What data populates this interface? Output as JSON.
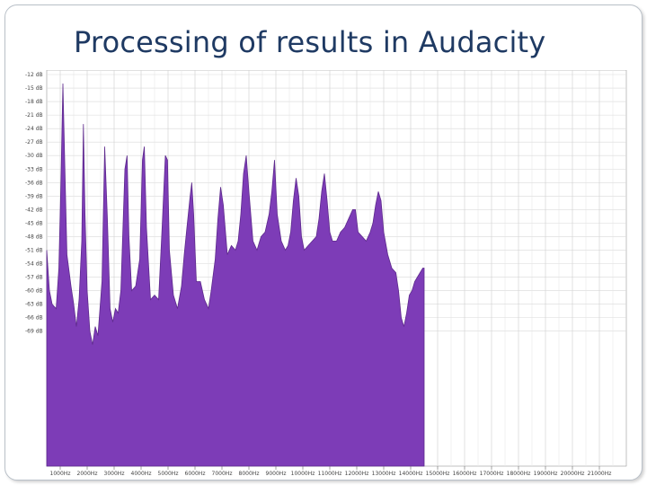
{
  "slide": {
    "title": "Processing of results in Audacity"
  },
  "chart_data": {
    "type": "area",
    "title": "",
    "xlabel": "",
    "ylabel": "",
    "series_color": "#7d3cb7",
    "grid": true,
    "x_range": [
      500,
      22000
    ],
    "y_range": [
      -99,
      -11
    ],
    "y_ticks": [
      {
        "label": "-12 dB",
        "value": -12
      },
      {
        "label": "-15 dB",
        "value": -15
      },
      {
        "label": "-18 dB",
        "value": -18
      },
      {
        "label": "-21 dB",
        "value": -21
      },
      {
        "label": "-24 dB",
        "value": -24
      },
      {
        "label": "-27 dB",
        "value": -27
      },
      {
        "label": "-30 dB",
        "value": -30
      },
      {
        "label": "-33 dB",
        "value": -33
      },
      {
        "label": "-36 dB",
        "value": -36
      },
      {
        "label": "-39 dB",
        "value": -39
      },
      {
        "label": "-42 dB",
        "value": -42
      },
      {
        "label": "-45 dB",
        "value": -45
      },
      {
        "label": "-48 dB",
        "value": -48
      },
      {
        "label": "-51 dB",
        "value": -51
      },
      {
        "label": "-54 dB",
        "value": -54
      },
      {
        "label": "-57 dB",
        "value": -57
      },
      {
        "label": "-60 dB",
        "value": -60
      },
      {
        "label": "-63 dB",
        "value": -63
      },
      {
        "label": "-66 dB",
        "value": -66
      },
      {
        "label": "-69 dB",
        "value": -69
      }
    ],
    "x_ticks": [
      {
        "label": "1000Hz",
        "value": 1000
      },
      {
        "label": "2000Hz",
        "value": 2000
      },
      {
        "label": "3000Hz",
        "value": 3000
      },
      {
        "label": "4000Hz",
        "value": 4000
      },
      {
        "label": "5000Hz",
        "value": 5000
      },
      {
        "label": "6000Hz",
        "value": 6000
      },
      {
        "label": "7000Hz",
        "value": 7000
      },
      {
        "label": "8000Hz",
        "value": 8000
      },
      {
        "label": "9000Hz",
        "value": 9000
      },
      {
        "label": "10000Hz",
        "value": 10000
      },
      {
        "label": "11000Hz",
        "value": 11000
      },
      {
        "label": "12000Hz",
        "value": 12000
      },
      {
        "label": "13000Hz",
        "value": 13000
      },
      {
        "label": "14000Hz",
        "value": 14000
      },
      {
        "label": "15000Hz",
        "value": 15000
      },
      {
        "label": "16000Hz",
        "value": 16000
      },
      {
        "label": "17000Hz",
        "value": 17000
      },
      {
        "label": "18000Hz",
        "value": 18000
      },
      {
        "label": "19000Hz",
        "value": 19000
      },
      {
        "label": "20000Hz",
        "value": 20000
      },
      {
        "label": "21000Hz",
        "value": 21000
      }
    ],
    "series": [
      {
        "points": [
          [
            500,
            -51
          ],
          [
            600,
            -60
          ],
          [
            700,
            -63
          ],
          [
            850,
            -64
          ],
          [
            950,
            -55
          ],
          [
            1030,
            -35
          ],
          [
            1100,
            -14
          ],
          [
            1170,
            -32
          ],
          [
            1250,
            -52
          ],
          [
            1400,
            -59
          ],
          [
            1500,
            -63
          ],
          [
            1600,
            -68
          ],
          [
            1700,
            -62
          ],
          [
            1800,
            -49
          ],
          [
            1860,
            -23
          ],
          [
            1920,
            -43
          ],
          [
            2000,
            -60
          ],
          [
            2100,
            -69
          ],
          [
            2200,
            -72
          ],
          [
            2300,
            -68
          ],
          [
            2400,
            -70
          ],
          [
            2550,
            -58
          ],
          [
            2650,
            -28
          ],
          [
            2750,
            -44
          ],
          [
            2850,
            -64
          ],
          [
            2950,
            -67
          ],
          [
            3050,
            -64
          ],
          [
            3150,
            -65
          ],
          [
            3250,
            -60
          ],
          [
            3400,
            -33
          ],
          [
            3480,
            -30
          ],
          [
            3550,
            -48
          ],
          [
            3650,
            -60
          ],
          [
            3800,
            -59
          ],
          [
            3950,
            -53
          ],
          [
            4050,
            -31
          ],
          [
            4120,
            -28
          ],
          [
            4200,
            -46
          ],
          [
            4350,
            -62
          ],
          [
            4500,
            -61
          ],
          [
            4650,
            -62
          ],
          [
            4780,
            -46
          ],
          [
            4900,
            -30
          ],
          [
            4980,
            -31
          ],
          [
            5050,
            -51
          ],
          [
            5200,
            -61
          ],
          [
            5350,
            -64
          ],
          [
            5500,
            -59
          ],
          [
            5600,
            -52
          ],
          [
            5700,
            -46
          ],
          [
            5820,
            -39
          ],
          [
            5880,
            -36
          ],
          [
            5950,
            -43
          ],
          [
            6050,
            -58
          ],
          [
            6200,
            -58
          ],
          [
            6350,
            -62
          ],
          [
            6500,
            -64
          ],
          [
            6600,
            -60
          ],
          [
            6750,
            -53
          ],
          [
            6850,
            -44
          ],
          [
            6950,
            -37
          ],
          [
            7050,
            -41
          ],
          [
            7200,
            -52
          ],
          [
            7350,
            -50
          ],
          [
            7500,
            -51
          ],
          [
            7600,
            -49
          ],
          [
            7700,
            -43
          ],
          [
            7800,
            -34
          ],
          [
            7900,
            -30
          ],
          [
            8000,
            -38
          ],
          [
            8150,
            -49
          ],
          [
            8300,
            -51
          ],
          [
            8450,
            -48
          ],
          [
            8600,
            -47
          ],
          [
            8750,
            -43
          ],
          [
            8850,
            -38
          ],
          [
            8950,
            -31
          ],
          [
            9050,
            -43
          ],
          [
            9200,
            -49
          ],
          [
            9350,
            -51
          ],
          [
            9450,
            -50
          ],
          [
            9550,
            -47
          ],
          [
            9650,
            -40
          ],
          [
            9750,
            -35
          ],
          [
            9850,
            -39
          ],
          [
            9950,
            -48
          ],
          [
            10050,
            -51
          ],
          [
            10200,
            -50
          ],
          [
            10350,
            -49
          ],
          [
            10500,
            -48
          ],
          [
            10600,
            -44
          ],
          [
            10700,
            -38
          ],
          [
            10800,
            -34
          ],
          [
            10900,
            -40
          ],
          [
            11000,
            -47
          ],
          [
            11100,
            -49
          ],
          [
            11250,
            -49
          ],
          [
            11400,
            -47
          ],
          [
            11550,
            -46
          ],
          [
            11700,
            -44
          ],
          [
            11850,
            -42
          ],
          [
            11950,
            -42
          ],
          [
            12050,
            -47
          ],
          [
            12200,
            -48
          ],
          [
            12350,
            -49
          ],
          [
            12500,
            -47
          ],
          [
            12600,
            -45
          ],
          [
            12700,
            -41
          ],
          [
            12800,
            -38
          ],
          [
            12900,
            -40
          ],
          [
            13000,
            -47
          ],
          [
            13150,
            -52
          ],
          [
            13300,
            -55
          ],
          [
            13450,
            -56
          ],
          [
            13550,
            -60
          ],
          [
            13650,
            -66
          ],
          [
            13750,
            -68
          ],
          [
            13850,
            -65
          ],
          [
            13950,
            -61
          ],
          [
            14050,
            -60
          ],
          [
            14150,
            -58
          ],
          [
            14250,
            -57
          ],
          [
            14350,
            -56
          ],
          [
            14450,
            -55
          ],
          [
            14500,
            -55
          ]
        ]
      }
    ]
  }
}
